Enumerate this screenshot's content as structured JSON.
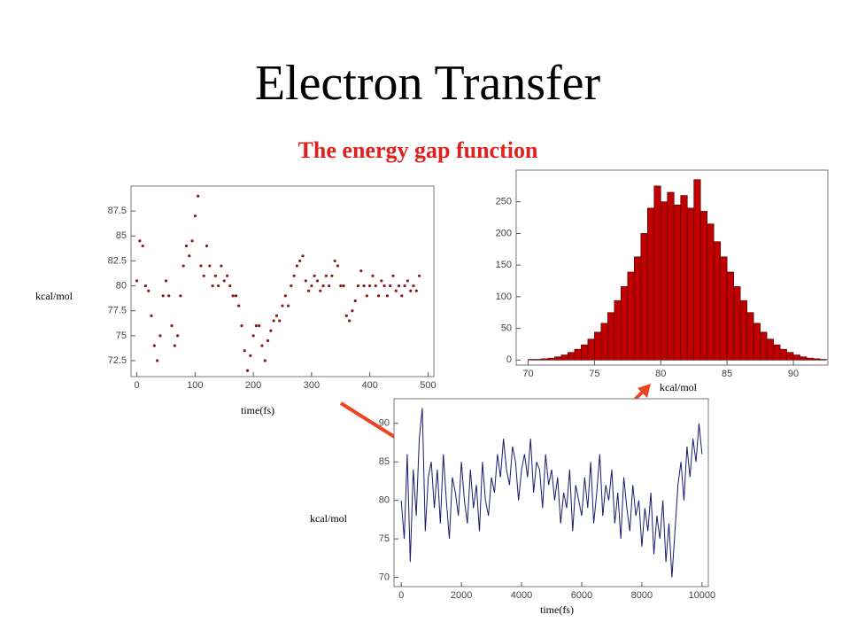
{
  "title": "Electron Transfer",
  "subtitle": "The energy gap function",
  "chart_data": [
    {
      "type": "scatter",
      "ylabel": "kcal/mol",
      "xlabel": "time(fs)",
      "color": "#8b1a1a",
      "x": [
        0,
        5,
        10,
        15,
        20,
        25,
        30,
        35,
        40,
        45,
        50,
        55,
        60,
        65,
        70,
        75,
        80,
        85,
        90,
        95,
        100,
        105,
        110,
        115,
        120,
        125,
        130,
        135,
        140,
        145,
        150,
        155,
        160,
        165,
        170,
        175,
        180,
        185,
        190,
        195,
        200,
        205,
        210,
        215,
        220,
        225,
        230,
        235,
        240,
        245,
        250,
        255,
        260,
        265,
        270,
        275,
        280,
        285,
        290,
        295,
        300,
        305,
        310,
        315,
        320,
        325,
        330,
        335,
        340,
        345,
        350,
        355,
        360,
        365,
        370,
        375,
        380,
        385,
        390,
        395,
        400,
        405,
        410,
        415,
        420,
        425,
        430,
        435,
        440,
        445,
        450,
        455,
        460,
        465,
        470,
        475,
        480,
        485
      ],
      "values": [
        80.5,
        84.5,
        84,
        80,
        79.5,
        77,
        74,
        72.5,
        75,
        79,
        80.5,
        79,
        76,
        74,
        75,
        79,
        82,
        84,
        83,
        84.5,
        87,
        89,
        82,
        81,
        84,
        82,
        80,
        81,
        80,
        82,
        80.5,
        81,
        80,
        79,
        79,
        78,
        76,
        73.5,
        71.5,
        73,
        75,
        76,
        76,
        74,
        72.5,
        74.5,
        75.5,
        76.5,
        77,
        76.5,
        78,
        79,
        78,
        80,
        81,
        82,
        82.5,
        83,
        80.5,
        79.5,
        80,
        81,
        80.5,
        79.5,
        80,
        81,
        80,
        81,
        82.5,
        82,
        80,
        80,
        77,
        76.5,
        77.5,
        78.5,
        80,
        81.5,
        80,
        79,
        80,
        81,
        80,
        79,
        80.5,
        80,
        79,
        80,
        81,
        79.5,
        80,
        79,
        80,
        80.5,
        79.5,
        80,
        79.5,
        81
      ],
      "xlim": [
        -10,
        510
      ],
      "xticks": [
        0,
        100,
        200,
        300,
        400,
        500
      ],
      "ylim": [
        70.9,
        90
      ],
      "yticks": [
        72.5,
        75,
        77.5,
        80,
        82.5,
        85,
        87.5
      ]
    },
    {
      "type": "histogram",
      "xlabel": "kcal/mol",
      "color": "#c00000",
      "bins": [
        69.5,
        70,
        70.5,
        71,
        71.5,
        72,
        72.5,
        73,
        73.5,
        74,
        74.5,
        75,
        75.5,
        76,
        76.5,
        77,
        77.5,
        78,
        78.5,
        79,
        79.5,
        80,
        80.5,
        81,
        81.5,
        82,
        82.5,
        83,
        83.5,
        84,
        84.5,
        85,
        85.5,
        86,
        86.5,
        87,
        87.5,
        88,
        88.5,
        89,
        89.5,
        90,
        90.5,
        91,
        91.5,
        92,
        92.5
      ],
      "values": [
        0,
        1,
        1,
        2,
        3,
        5,
        8,
        12,
        17,
        24,
        33,
        44,
        58,
        75,
        94,
        116,
        139,
        163,
        200,
        240,
        275,
        250,
        265,
        245,
        260,
        240,
        285,
        235,
        215,
        187,
        163,
        139,
        116,
        94,
        75,
        58,
        44,
        33,
        24,
        17,
        12,
        8,
        5,
        3,
        2,
        1
      ],
      "xlim": [
        69.1,
        92.6
      ],
      "xticks": [
        70,
        75,
        80,
        85,
        90
      ],
      "ylim": [
        -8,
        300
      ],
      "yticks": [
        0,
        50,
        100,
        150,
        200,
        250
      ]
    },
    {
      "type": "line",
      "ylabel": "kcal/mol",
      "xlabel": "time(fs)",
      "color": "#1a1a6e",
      "x": [
        0,
        100,
        200,
        300,
        400,
        500,
        600,
        700,
        800,
        900,
        1000,
        1100,
        1200,
        1300,
        1400,
        1500,
        1600,
        1700,
        1800,
        1900,
        2000,
        2100,
        2200,
        2300,
        2400,
        2500,
        2600,
        2700,
        2800,
        2900,
        3000,
        3100,
        3200,
        3300,
        3400,
        3500,
        3600,
        3700,
        3800,
        3900,
        4000,
        4100,
        4200,
        4300,
        4400,
        4500,
        4600,
        4700,
        4800,
        4900,
        5000,
        5100,
        5200,
        5300,
        5400,
        5500,
        5600,
        5700,
        5800,
        5900,
        6000,
        6100,
        6200,
        6300,
        6400,
        6500,
        6600,
        6700,
        6800,
        6900,
        7000,
        7100,
        7200,
        7300,
        7400,
        7500,
        7600,
        7700,
        7800,
        7900,
        8000,
        8100,
        8200,
        8300,
        8400,
        8500,
        8600,
        8700,
        8800,
        8900,
        9000,
        9100,
        9200,
        9300,
        9400,
        9500,
        9600,
        9700,
        9800,
        9900,
        10000
      ],
      "values": [
        80,
        75,
        86,
        72,
        84,
        78,
        88,
        92,
        76,
        83,
        85,
        79,
        84,
        77,
        86,
        80,
        75,
        83,
        81,
        78,
        85,
        80,
        77,
        84,
        79,
        82,
        76,
        85,
        80,
        78,
        83,
        81,
        86,
        83,
        88,
        84,
        82,
        87,
        85,
        80,
        84,
        86,
        83,
        88,
        81,
        85,
        84,
        79,
        86,
        82,
        84,
        80,
        83,
        77,
        81,
        79,
        84,
        76,
        82,
        80,
        78,
        83,
        79,
        85,
        77,
        81,
        86,
        78,
        82,
        80,
        84,
        77,
        81,
        75,
        83,
        79,
        76,
        82,
        78,
        80,
        74,
        79,
        76,
        81,
        73,
        78,
        75,
        80,
        72,
        77,
        70,
        76,
        82,
        85,
        80,
        87,
        83,
        88,
        85,
        90,
        86
      ],
      "xlim": [
        -240,
        10210
      ],
      "xticks": [
        0,
        2000,
        4000,
        6000,
        8000,
        10000
      ],
      "ylim": [
        68.8,
        93.2
      ],
      "yticks": [
        70,
        75,
        80,
        85,
        90
      ]
    }
  ]
}
